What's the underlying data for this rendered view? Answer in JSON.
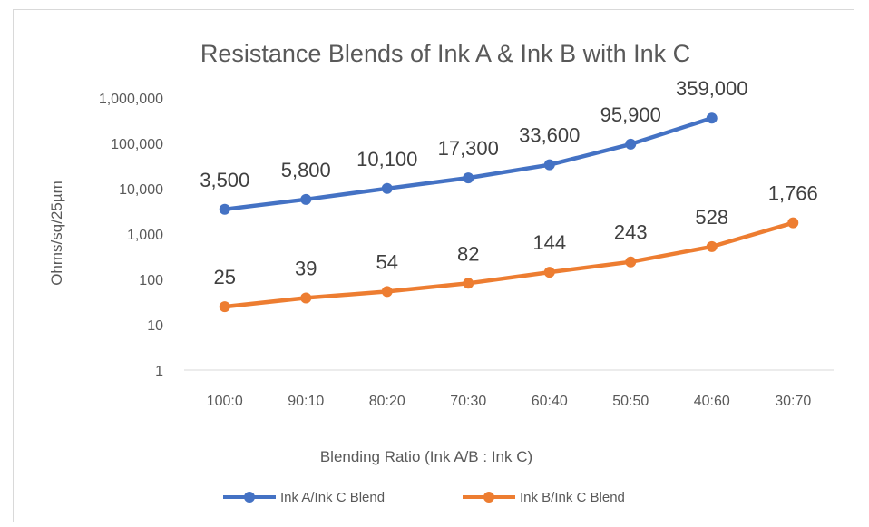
{
  "chart_data": {
    "type": "line",
    "title": "Resistance Blends of Ink A & Ink B with Ink C",
    "xlabel": "Blending Ratio (Ink A/B : Ink C)",
    "ylabel": "Ohms/sq/25µm",
    "y_scale": "log",
    "ylim": [
      1,
      1000000
    ],
    "y_ticks": [
      1,
      10,
      100,
      1000,
      10000,
      100000,
      1000000
    ],
    "y_tick_labels": [
      "1",
      "10",
      "100",
      "1,000",
      "10,000",
      "100,000",
      "1,000,000"
    ],
    "categories": [
      "100:0",
      "90:10",
      "80:20",
      "70:30",
      "60:40",
      "50:50",
      "40:60",
      "30:70"
    ],
    "grid": false,
    "legend_position": "bottom",
    "series": [
      {
        "name": "Ink A/Ink C Blend",
        "color": "#4472c4",
        "values": [
          3500,
          5800,
          10100,
          17300,
          33600,
          95900,
          359000,
          null
        ],
        "labels": [
          "3,500",
          "5,800",
          "10,100",
          "17,300",
          "33,600",
          "95,900",
          "359,000",
          null
        ]
      },
      {
        "name": "Ink B/Ink C Blend",
        "color": "#ed7d31",
        "values": [
          25,
          39,
          54,
          82,
          144,
          243,
          528,
          1766
        ],
        "labels": [
          "25",
          "39",
          "54",
          "82",
          "144",
          "243",
          "528",
          "1,766"
        ]
      }
    ]
  }
}
